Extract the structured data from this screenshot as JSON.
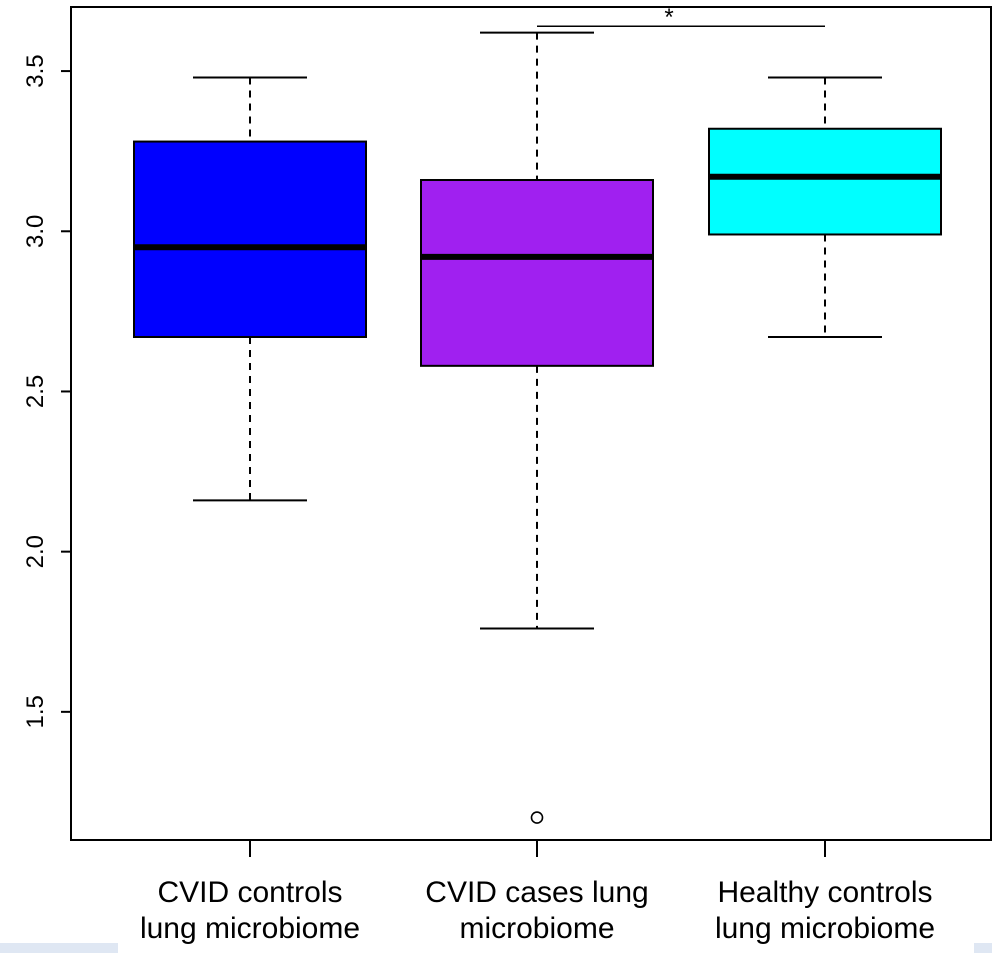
{
  "chart_data": {
    "type": "boxplot",
    "title": "",
    "xlabel": "",
    "ylabel": "",
    "ylim": [
      1.1,
      3.7
    ],
    "y_ticks": [
      1.5,
      2.0,
      2.5,
      3.0,
      3.5
    ],
    "y_tick_labels": [
      "1.5",
      "2.0",
      "2.5",
      "3.0",
      "3.5"
    ],
    "grid": false,
    "categories": [
      [
        "CVID controls",
        "lung microbiome"
      ],
      [
        "CVID cases lung",
        "microbiome"
      ],
      [
        "Healthy controls",
        "lung microbiome"
      ]
    ],
    "boxes": [
      {
        "color": "#0000ff",
        "whisker_low": 2.16,
        "q1": 2.67,
        "median": 2.95,
        "q3": 3.28,
        "whisker_high": 3.48,
        "outliers": []
      },
      {
        "color": "#a020f0",
        "whisker_low": 1.76,
        "q1": 2.58,
        "median": 2.92,
        "q3": 3.16,
        "whisker_high": 3.62,
        "outliers": [
          1.17
        ]
      },
      {
        "color": "#00ffff",
        "whisker_low": 2.67,
        "q1": 2.99,
        "median": 3.17,
        "q3": 3.32,
        "whisker_high": 3.48,
        "outliers": []
      }
    ],
    "annotations": [
      {
        "label": "*",
        "from_group": 1,
        "to_group": 2,
        "y": 3.64
      }
    ]
  }
}
